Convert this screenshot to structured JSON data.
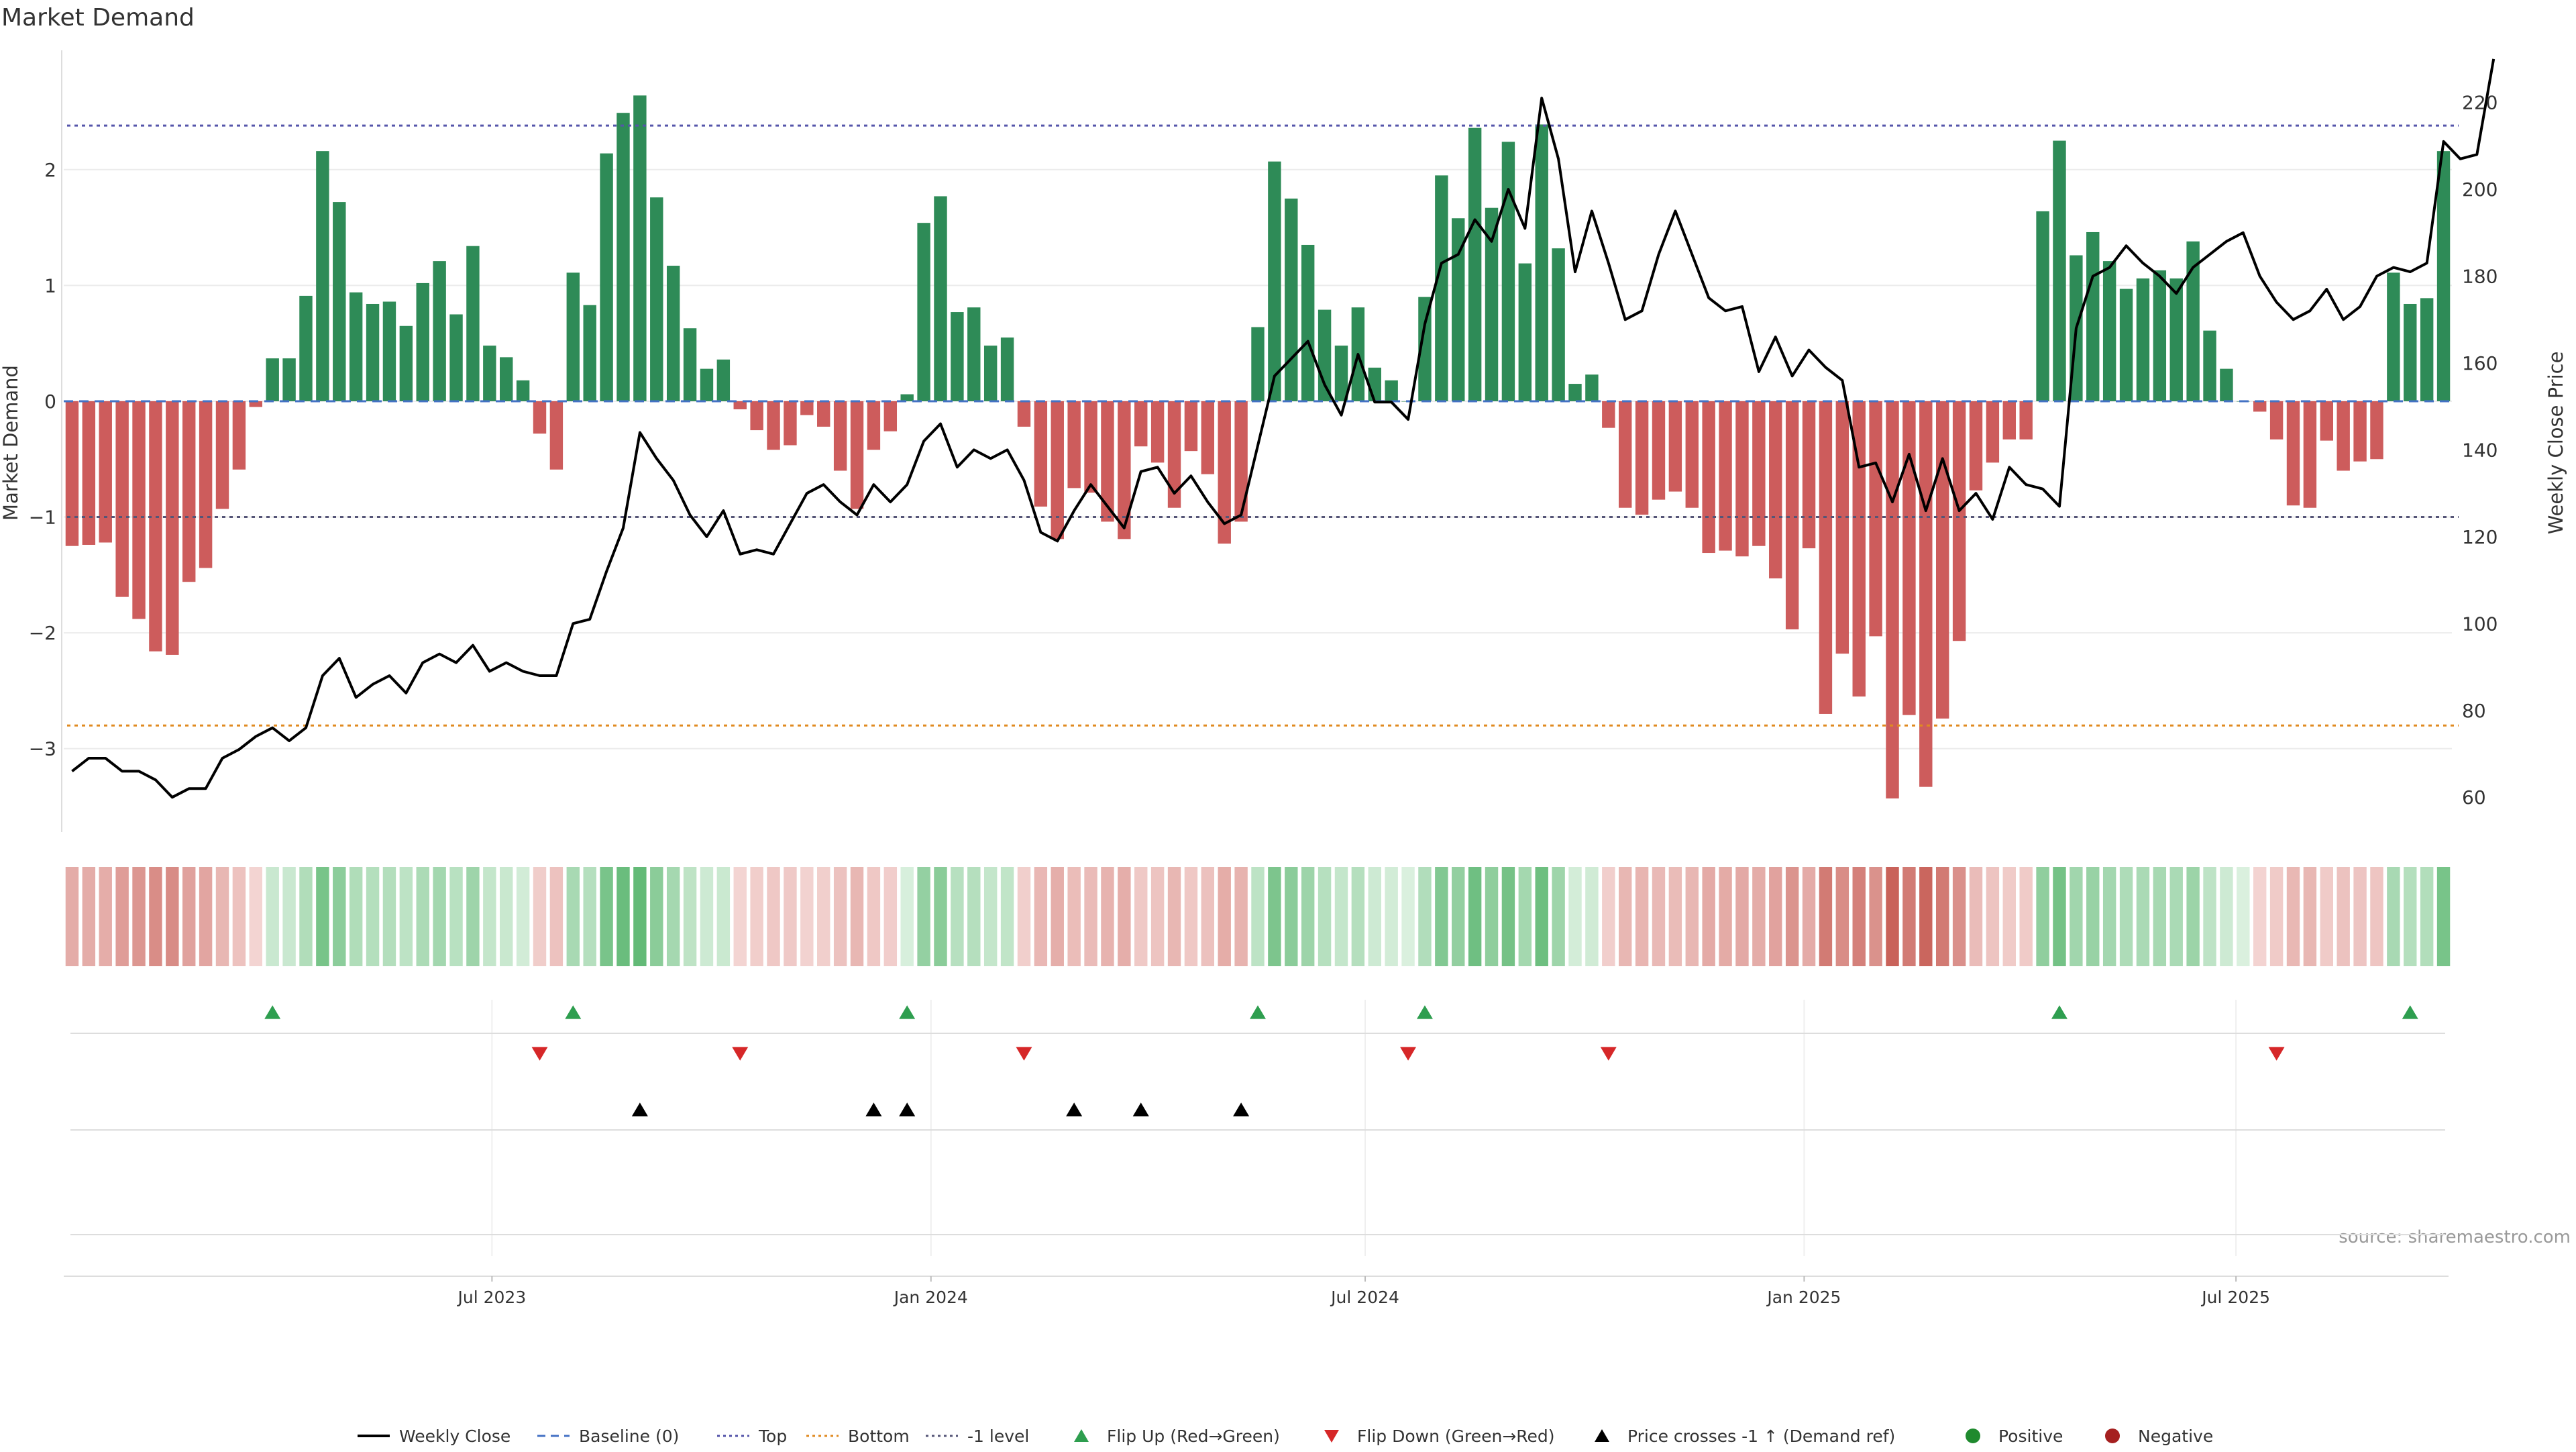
{
  "chart_data": {
    "type": "bar",
    "title": "Market Demand",
    "ylabel": "Market Demand",
    "y2label": "Weekly Close Price",
    "source": "source: sharemaestro.com",
    "ylim": [
      -3.72,
      3.03
    ],
    "y2lim": [
      52,
      232
    ],
    "y_ticks": [
      2,
      1,
      0,
      -1,
      -2,
      -3
    ],
    "y_tick_labels": [
      "2",
      "1",
      "0",
      "−1",
      "−2",
      "−3"
    ],
    "y2_ticks": [
      220,
      200,
      180,
      160,
      140,
      120,
      100,
      80,
      60
    ],
    "start_date": "2023-01-06",
    "x_ticks": [
      {
        "date": "2023-07-01",
        "label": "Jul 2023"
      },
      {
        "date": "2024-01-01",
        "label": "Jan 2024"
      },
      {
        "date": "2024-07-01",
        "label": "Jul 2024"
      },
      {
        "date": "2025-01-01",
        "label": "Jan 2025"
      },
      {
        "date": "2025-07-01",
        "label": "Jul 2025"
      }
    ],
    "reference_lines": {
      "top": 2.38,
      "bottom": -2.8,
      "minus_one": -1.0,
      "baseline": 0
    },
    "demand": [
      -1.25,
      -1.24,
      -1.22,
      -1.69,
      -1.88,
      -2.16,
      -2.19,
      -1.56,
      -1.44,
      -0.93,
      -0.59,
      -0.05,
      0.37,
      0.37,
      0.91,
      2.16,
      1.72,
      0.94,
      0.84,
      0.86,
      0.65,
      1.02,
      1.21,
      0.75,
      1.34,
      0.48,
      0.38,
      0.18,
      -0.28,
      -0.59,
      1.11,
      0.83,
      2.14,
      2.49,
      2.64,
      1.76,
      1.17,
      0.63,
      0.28,
      0.36,
      -0.07,
      -0.25,
      -0.42,
      -0.38,
      -0.12,
      -0.22,
      -0.6,
      -0.93,
      -0.42,
      -0.26,
      0.06,
      1.54,
      1.77,
      0.77,
      0.81,
      0.48,
      0.55,
      -0.22,
      -0.91,
      -1.19,
      -0.75,
      -0.79,
      -1.04,
      -1.19,
      -0.39,
      -0.53,
      -0.92,
      -0.43,
      -0.63,
      -1.23,
      -1.04,
      0.64,
      2.07,
      1.75,
      1.35,
      0.79,
      0.48,
      0.81,
      0.29,
      0.18,
      0.0,
      0.9,
      1.95,
      1.58,
      2.36,
      1.67,
      2.24,
      1.19,
      2.39,
      1.32,
      0.15,
      0.23,
      -0.23,
      -0.92,
      -0.98,
      -0.85,
      -0.78,
      -0.92,
      -1.31,
      -1.29,
      -1.34,
      -1.25,
      -1.53,
      -1.97,
      -1.27,
      -2.7,
      -2.18,
      -2.55,
      -2.03,
      -3.43,
      -2.71,
      -3.33,
      -2.74,
      -2.07,
      -0.77,
      -0.53,
      -0.33,
      -0.33,
      1.64,
      2.25,
      1.26,
      1.46,
      1.21,
      0.97,
      1.06,
      1.13,
      1.06,
      1.38,
      0.61,
      0.28,
      0.0,
      -0.09,
      -0.33,
      -0.9,
      -0.92,
      -0.34,
      -0.6,
      -0.52,
      -0.5,
      1.11,
      0.84,
      0.89,
      2.16
    ],
    "close": [
      66,
      69,
      69,
      66,
      66,
      64,
      60,
      62,
      62,
      69,
      71,
      74,
      76,
      73,
      76,
      88,
      92,
      83,
      86,
      88,
      84,
      91,
      93,
      91,
      95,
      89,
      91,
      89,
      88,
      88,
      100,
      101,
      112,
      122,
      144,
      138,
      133,
      125,
      120,
      126,
      116,
      117,
      116,
      123,
      130,
      132,
      128,
      125,
      132,
      128,
      132,
      142,
      146,
      136,
      140,
      138,
      140,
      133,
      121,
      119,
      126,
      132,
      127,
      122,
      135,
      136,
      130,
      134,
      128,
      123,
      125,
      141,
      157,
      161,
      165,
      155,
      148,
      162,
      151,
      151,
      147,
      169,
      183,
      185,
      193,
      188,
      200,
      191,
      221,
      207,
      181,
      195,
      183,
      170,
      172,
      185,
      195,
      185,
      175,
      172,
      173,
      158,
      166,
      157,
      163,
      159,
      156,
      136,
      137,
      128,
      139,
      126,
      138,
      126,
      130,
      124,
      136,
      132,
      131,
      127,
      168,
      180,
      182,
      187,
      183,
      180,
      176,
      182,
      185,
      188,
      190,
      180,
      174,
      170,
      172,
      177,
      170,
      173,
      180,
      182,
      181,
      183,
      211,
      207,
      208,
      230
    ],
    "flip_up": [
      12,
      30,
      50,
      71,
      81,
      119,
      140
    ],
    "flip_down": [
      28,
      40,
      57,
      80,
      92,
      132
    ],
    "price_cross": [
      34,
      48,
      50,
      60,
      64,
      70
    ],
    "legend": [
      {
        "label": "Weekly Close",
        "kind": "line",
        "color": "#000000"
      },
      {
        "label": "Baseline (0)",
        "kind": "dash",
        "color": "#4472c4"
      },
      {
        "label": "Top",
        "kind": "dot",
        "color": "#5555aa"
      },
      {
        "label": "Bottom",
        "kind": "dot",
        "color": "#e08a20"
      },
      {
        "label": "-1 level",
        "kind": "dot",
        "color": "#555577"
      },
      {
        "label": "Flip Up (Red→Green)",
        "kind": "tri-up",
        "color": "#2e9e4f"
      },
      {
        "label": "Flip Down (Green→Red)",
        "kind": "tri-down",
        "color": "#d62728"
      },
      {
        "label": "Price crosses -1 ↑ (Demand ref)",
        "kind": "tri-up",
        "color": "#000000"
      },
      {
        "label": "Positive",
        "kind": "dot-marker",
        "color": "#1f8a2e"
      },
      {
        "label": "Negative",
        "kind": "dot-marker",
        "color": "#a52020"
      }
    ],
    "colors": {
      "positive": "#2e8b57",
      "negative": "#cd5c5c",
      "line": "#000000",
      "grid": "#ececec"
    }
  }
}
